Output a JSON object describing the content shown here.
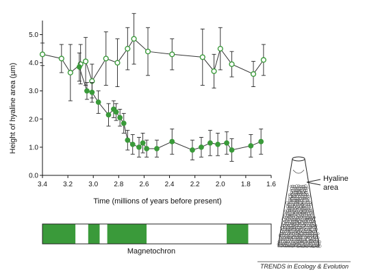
{
  "chart_data": {
    "type": "scatter",
    "title": "",
    "xlabel": "Time (millions of years before present)",
    "ylabel": "Height of hyaline area (µm)",
    "xlim": [
      3.4,
      1.6
    ],
    "ylim": [
      0.0,
      5.5
    ],
    "x_ticks": [
      "3.4",
      "3.2",
      "3.0",
      "2.8",
      "2.6",
      "2.4",
      "2.2",
      "2.0",
      "1.8",
      "1.6"
    ],
    "y_ticks": [
      "0.0",
      "1.0",
      "2.0",
      "3.0",
      "4.0",
      "5.0"
    ],
    "x_tick_values": [
      3.4,
      3.2,
      3.0,
      2.8,
      2.6,
      2.4,
      2.2,
      2.0,
      1.8,
      1.6
    ],
    "y_tick_values": [
      0.0,
      1.0,
      2.0,
      3.0,
      4.0,
      5.0
    ],
    "colors": {
      "series": "#3a9a3a",
      "line": "#333333",
      "error": "#222222",
      "magnetochron": "#3a9a3a"
    },
    "series": [
      {
        "name": "",
        "style": "open-circle",
        "points": [
          {
            "x": 3.4,
            "y": 4.3,
            "err": 0.4
          },
          {
            "x": 3.25,
            "y": 4.15,
            "err": 0.5
          },
          {
            "x": 3.18,
            "y": 3.65,
            "err": 1.0
          },
          {
            "x": 3.1,
            "y": 3.95,
            "err": 0.7
          },
          {
            "x": 3.06,
            "y": 4.05,
            "err": 0.85
          },
          {
            "x": 3.01,
            "y": 3.35,
            "err": 0.6
          },
          {
            "x": 2.9,
            "y": 4.15,
            "err": 0.95
          },
          {
            "x": 2.81,
            "y": 4.0,
            "err": 0.85
          },
          {
            "x": 2.73,
            "y": 4.5,
            "err": 0.75
          },
          {
            "x": 2.68,
            "y": 4.85,
            "err": 0.9
          },
          {
            "x": 2.57,
            "y": 4.4,
            "err": 0.85
          },
          {
            "x": 2.38,
            "y": 4.3,
            "err": 0.55
          },
          {
            "x": 2.14,
            "y": 4.2,
            "err": 1.0
          },
          {
            "x": 2.05,
            "y": 3.7,
            "err": 0.6
          },
          {
            "x": 2.0,
            "y": 4.5,
            "err": 0.75
          },
          {
            "x": 1.91,
            "y": 3.95,
            "err": 0.45
          },
          {
            "x": 1.74,
            "y": 3.6,
            "err": 0.45
          },
          {
            "x": 1.66,
            "y": 4.1,
            "err": 0.55
          }
        ]
      },
      {
        "name": "",
        "style": "filled-circle",
        "points": [
          {
            "x": 3.11,
            "y": 3.85,
            "err": 0.5
          },
          {
            "x": 3.05,
            "y": 3.0,
            "err": 0.3
          },
          {
            "x": 3.01,
            "y": 2.95,
            "err": 0.35
          },
          {
            "x": 2.96,
            "y": 2.6,
            "err": 0.4
          },
          {
            "x": 2.88,
            "y": 2.15,
            "err": 0.4
          },
          {
            "x": 2.84,
            "y": 2.35,
            "err": 0.3
          },
          {
            "x": 2.82,
            "y": 2.25,
            "err": 0.3
          },
          {
            "x": 2.79,
            "y": 2.05,
            "err": 0.3
          },
          {
            "x": 2.76,
            "y": 1.85,
            "err": 0.35
          },
          {
            "x": 2.73,
            "y": 1.25,
            "err": 0.35
          },
          {
            "x": 2.69,
            "y": 1.1,
            "err": 0.35
          },
          {
            "x": 2.64,
            "y": 1.0,
            "err": 0.35
          },
          {
            "x": 2.61,
            "y": 1.15,
            "err": 0.35
          },
          {
            "x": 2.58,
            "y": 0.95,
            "err": 0.3
          },
          {
            "x": 2.5,
            "y": 0.95,
            "err": 0.3
          },
          {
            "x": 2.38,
            "y": 1.2,
            "err": 0.45
          },
          {
            "x": 2.22,
            "y": 0.9,
            "err": 0.35
          },
          {
            "x": 2.15,
            "y": 1.0,
            "err": 0.35
          },
          {
            "x": 2.08,
            "y": 1.15,
            "err": 0.45
          },
          {
            "x": 2.02,
            "y": 1.1,
            "err": 0.4
          },
          {
            "x": 1.95,
            "y": 1.15,
            "err": 0.4
          },
          {
            "x": 1.91,
            "y": 0.9,
            "err": 0.4
          },
          {
            "x": 1.76,
            "y": 1.05,
            "err": 0.4
          },
          {
            "x": 1.68,
            "y": 1.2,
            "err": 0.45
          }
        ]
      }
    ],
    "legend": {
      "label": "Hyaline\narea",
      "position": "right"
    },
    "magnetochron": {
      "label": "Magnetochron",
      "segments": [
        {
          "from": 3.4,
          "to": 3.14,
          "normal": true
        },
        {
          "from": 3.14,
          "to": 3.04,
          "normal": false
        },
        {
          "from": 3.04,
          "to": 2.95,
          "normal": true
        },
        {
          "from": 2.95,
          "to": 2.89,
          "normal": false
        },
        {
          "from": 2.89,
          "to": 2.58,
          "normal": true
        },
        {
          "from": 2.58,
          "to": 1.95,
          "normal": false
        },
        {
          "from": 1.95,
          "to": 1.78,
          "normal": true
        },
        {
          "from": 1.78,
          "to": 1.6,
          "normal": false
        }
      ]
    },
    "credit": "TRENDS in Ecology & Evolution"
  }
}
